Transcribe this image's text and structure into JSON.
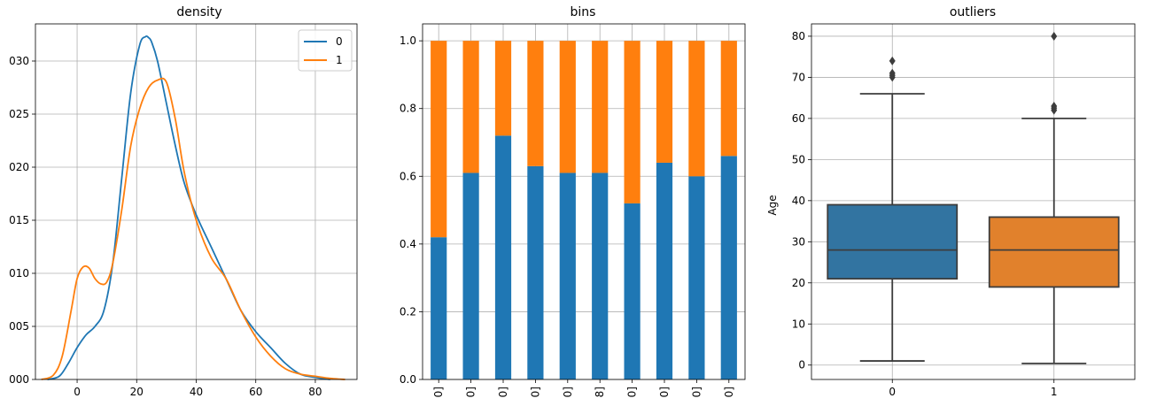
{
  "chart_data": [
    {
      "type": "line",
      "title": "density",
      "xlabel": "",
      "ylabel": "",
      "xlim": [
        -14,
        94
      ],
      "ylim": [
        0,
        0.0335
      ],
      "xticks": [
        0,
        20,
        40,
        60,
        80
      ],
      "yticks": [
        0.0,
        0.005,
        0.01,
        0.015,
        0.02,
        0.025,
        0.03
      ],
      "ytick_labels": [
        "000",
        "005",
        "010",
        "015",
        "020",
        "025",
        "030"
      ],
      "grid": true,
      "legend": "upper-right",
      "series": [
        {
          "name": "0",
          "color": "#1f77b4",
          "x": [
            -10,
            -6,
            -3,
            0,
            3,
            6,
            9,
            12,
            15,
            18,
            21,
            23,
            24,
            25,
            27,
            30,
            33,
            36,
            40,
            45,
            50,
            55,
            60,
            65,
            70,
            75,
            80,
            85
          ],
          "y": [
            0.0,
            0.0003,
            0.0015,
            0.003,
            0.0042,
            0.005,
            0.0065,
            0.011,
            0.019,
            0.027,
            0.0315,
            0.0323,
            0.0322,
            0.0318,
            0.03,
            0.026,
            0.022,
            0.0185,
            0.0155,
            0.0125,
            0.0095,
            0.0065,
            0.0045,
            0.003,
            0.0015,
            0.0005,
            0.0002,
            0.0
          ]
        },
        {
          "name": "1",
          "color": "#ff7f0e",
          "x": [
            -12,
            -8,
            -5,
            -2,
            0,
            2,
            4,
            6,
            8,
            10,
            12,
            15,
            18,
            21,
            24,
            27,
            30,
            33,
            36,
            40,
            45,
            50,
            55,
            60,
            65,
            70,
            75,
            80,
            85,
            90
          ],
          "y": [
            0.0,
            0.0004,
            0.0022,
            0.0065,
            0.0095,
            0.0106,
            0.0105,
            0.0095,
            0.009,
            0.0092,
            0.011,
            0.016,
            0.022,
            0.0255,
            0.0275,
            0.0282,
            0.028,
            0.0245,
            0.0195,
            0.015,
            0.0115,
            0.0095,
            0.0065,
            0.004,
            0.0022,
            0.001,
            0.0005,
            0.0003,
            0.0001,
            0.0
          ]
        }
      ]
    },
    {
      "type": "bar",
      "stacked": true,
      "title": "bins",
      "xlabel": "",
      "ylabel": "",
      "ylim": [
        0,
        1.05
      ],
      "yticks": [
        0.0,
        0.2,
        0.4,
        0.6,
        0.8,
        1.0
      ],
      "grid": true,
      "categories": [
        "0]",
        "0]",
        "0]",
        "0]",
        "0]",
        "8]",
        "0]",
        "0]",
        "0]",
        "0]"
      ],
      "series": [
        {
          "name": "0",
          "color": "#1f77b4",
          "values": [
            0.42,
            0.61,
            0.72,
            0.63,
            0.61,
            0.61,
            0.52,
            0.64,
            0.6,
            0.66
          ]
        },
        {
          "name": "1",
          "color": "#ff7f0e",
          "values": [
            0.58,
            0.39,
            0.28,
            0.37,
            0.39,
            0.39,
            0.48,
            0.36,
            0.4,
            0.34
          ]
        }
      ]
    },
    {
      "type": "box",
      "title": "outliers",
      "xlabel": "",
      "ylabel": "Age",
      "ylim": [
        -3.5,
        83
      ],
      "yticks": [
        0,
        10,
        20,
        30,
        40,
        50,
        60,
        70,
        80
      ],
      "grid": true,
      "categories": [
        "0",
        "1"
      ],
      "boxes": [
        {
          "label": "0",
          "color": "#3274a1",
          "whisker_low": 1,
          "q1": 21,
          "median": 28,
          "q3": 39,
          "whisker_high": 66,
          "outliers": [
            70,
            70.5,
            71,
            74
          ]
        },
        {
          "label": "1",
          "color": "#e1812c",
          "whisker_low": 0.4,
          "q1": 19,
          "median": 28,
          "q3": 36,
          "whisker_high": 60,
          "outliers": [
            62,
            62.5,
            63,
            80
          ]
        }
      ]
    }
  ]
}
